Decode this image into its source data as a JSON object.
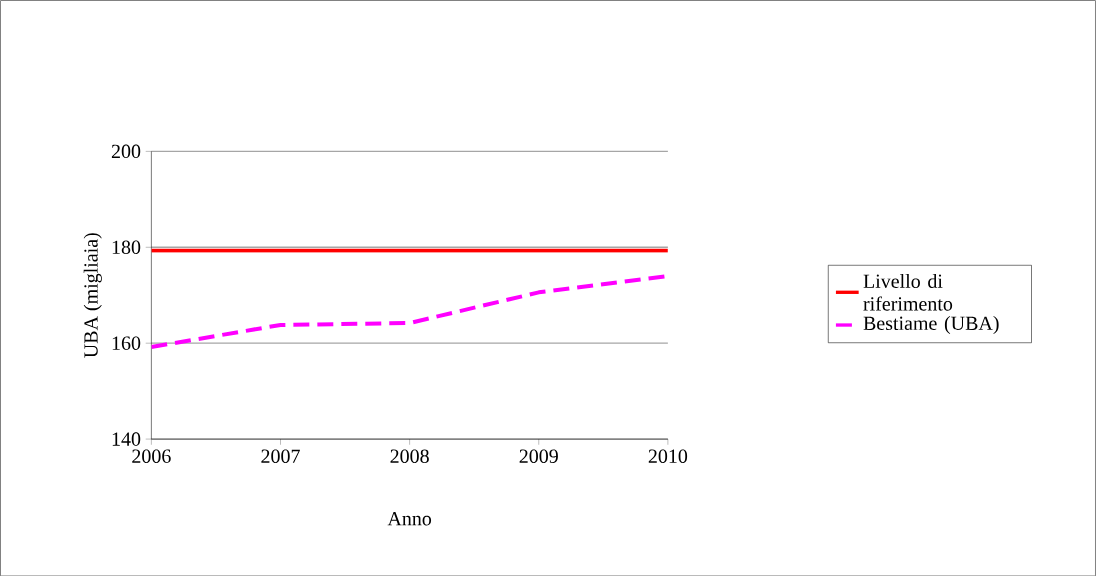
{
  "chart_data": {
    "type": "line",
    "xlabel": "Anno",
    "ylabel": "UBA (migliaia)",
    "x": [
      2006,
      2007,
      2008,
      2009,
      2010
    ],
    "xlim": [
      2006,
      2010
    ],
    "xticks": [
      2006,
      2007,
      2008,
      2009,
      2010
    ],
    "ylim": [
      140,
      200
    ],
    "yticks": [
      140,
      160,
      180,
      200
    ],
    "grid": "y",
    "legend": "right",
    "marker": "none",
    "series": [
      {
        "name": "Livello di riferimento",
        "color": "#ff0000",
        "line_style": "solid",
        "values": [
          179.3,
          179.3,
          179.3,
          179.3,
          179.3
        ]
      },
      {
        "name": "Bestiame (UBA)",
        "color": "#ff00ff",
        "line_style": "dashed",
        "values": [
          159.2,
          163.8,
          164.2,
          170.6,
          174.0
        ]
      }
    ]
  }
}
